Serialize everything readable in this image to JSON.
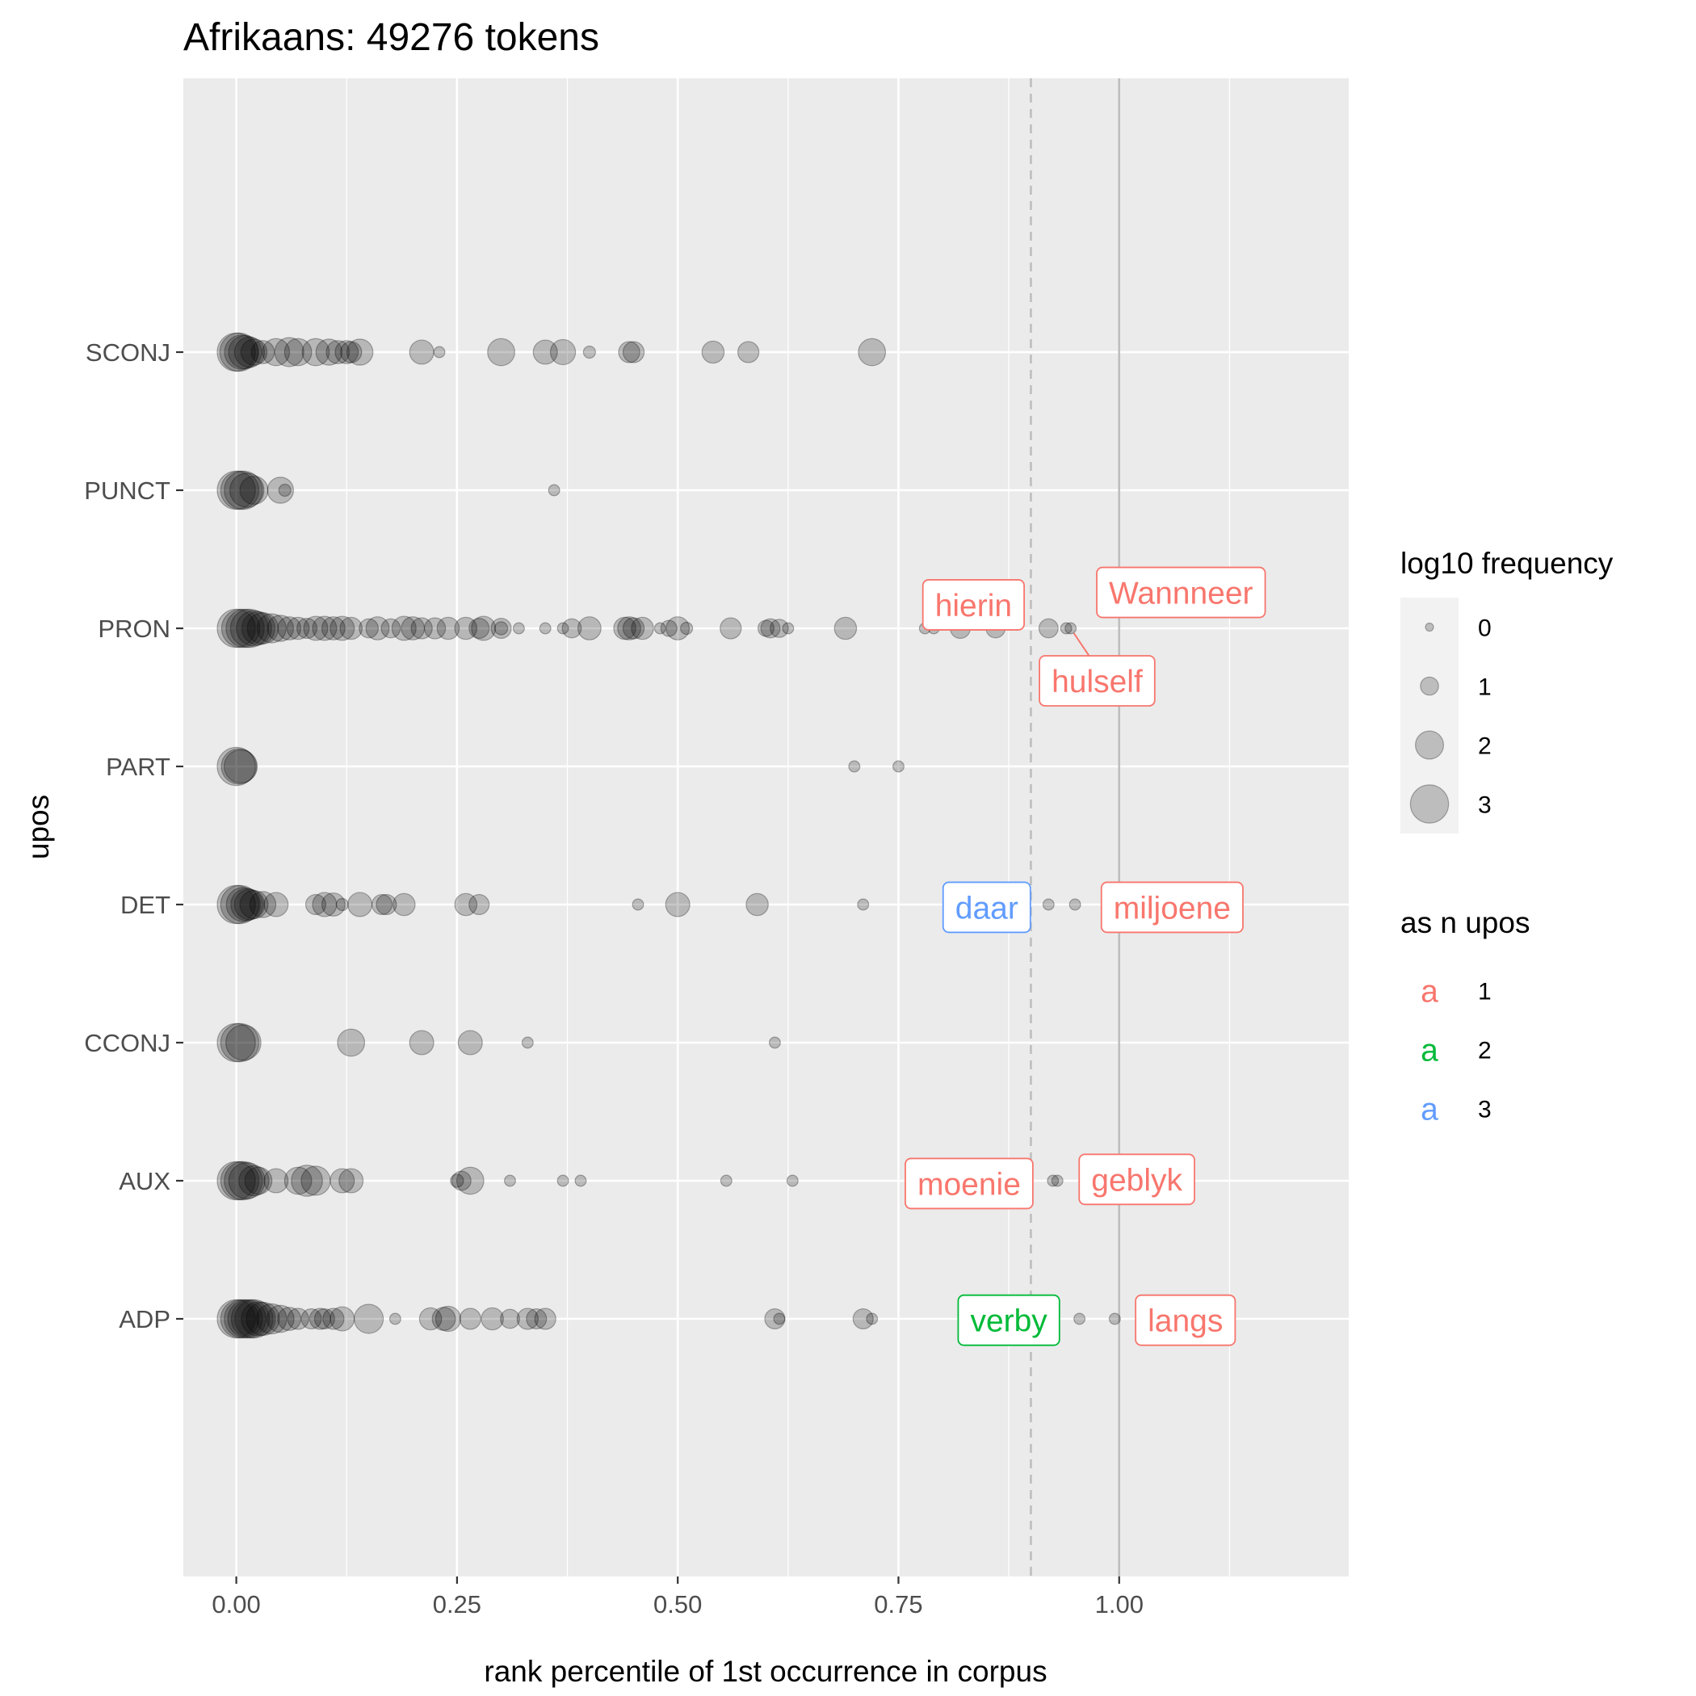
{
  "chart_data": {
    "type": "scatter",
    "title": "Afrikaans: 49276 tokens",
    "xlabel": "rank percentile of 1st occurrence in corpus",
    "ylabel": "upos",
    "xlim": [
      -0.06,
      1.26
    ],
    "x_ticks": [
      {
        "value": 0.0,
        "label": "0.00"
      },
      {
        "value": 0.25,
        "label": "0.25"
      },
      {
        "value": 0.5,
        "label": "0.50"
      },
      {
        "value": 0.75,
        "label": "0.75"
      },
      {
        "value": 1.0,
        "label": "1.00"
      }
    ],
    "categories": [
      "ADP",
      "AUX",
      "CCONJ",
      "DET",
      "PART",
      "PRON",
      "PUNCT",
      "SCONJ"
    ],
    "grid": true,
    "reference_lines": [
      {
        "x": 0.9,
        "style": "dashed",
        "color": "#bebebe"
      },
      {
        "x": 1.0,
        "style": "solid",
        "color": "#bebebe"
      }
    ],
    "point_color": "#000000",
    "point_alpha": 0.22,
    "size_legend": {
      "title": "log10 frequency",
      "levels": [
        {
          "value": 0,
          "label": "0"
        },
        {
          "value": 1,
          "label": "1"
        },
        {
          "value": 2,
          "label": "2"
        },
        {
          "value": 3,
          "label": "3"
        }
      ]
    },
    "color_legend": {
      "title": "as n upos",
      "glyph": "a",
      "items": [
        {
          "label": "1",
          "color": "#F8766D"
        },
        {
          "label": "2",
          "color": "#00BA38"
        },
        {
          "label": "3",
          "color": "#619CFF"
        }
      ]
    },
    "series": [
      {
        "category": "SCONJ",
        "points": [
          [
            0.0,
            3
          ],
          [
            0.003,
            3
          ],
          [
            0.006,
            2.6
          ],
          [
            0.01,
            2.5
          ],
          [
            0.015,
            2.2
          ],
          [
            0.02,
            1.8
          ],
          [
            0.03,
            1.5
          ],
          [
            0.045,
            1.9
          ],
          [
            0.06,
            2.1
          ],
          [
            0.07,
            1.9
          ],
          [
            0.09,
            1.9
          ],
          [
            0.105,
            1.8
          ],
          [
            0.115,
            1.5
          ],
          [
            0.125,
            1.5
          ],
          [
            0.13,
            1.3
          ],
          [
            0.14,
            1.8
          ],
          [
            0.21,
            1.6
          ],
          [
            0.23,
            0.3
          ],
          [
            0.3,
            1.9
          ],
          [
            0.35,
            1.6
          ],
          [
            0.37,
            1.7
          ],
          [
            0.4,
            0.4
          ],
          [
            0.445,
            1.3
          ],
          [
            0.45,
            1.3
          ],
          [
            0.54,
            1.4
          ],
          [
            0.58,
            1.3
          ],
          [
            0.72,
            1.9
          ]
        ]
      },
      {
        "category": "PUNCT",
        "points": [
          [
            0.0,
            3
          ],
          [
            0.004,
            3
          ],
          [
            0.008,
            3
          ],
          [
            0.012,
            2.6
          ],
          [
            0.02,
            2.0
          ],
          [
            0.05,
            1.8
          ],
          [
            0.055,
            0.4
          ],
          [
            0.36,
            0.3
          ]
        ]
      },
      {
        "category": "PRON",
        "points": [
          [
            0.0,
            3
          ],
          [
            0.005,
            3
          ],
          [
            0.01,
            3
          ],
          [
            0.015,
            3
          ],
          [
            0.02,
            2.7
          ],
          [
            0.025,
            2.5
          ],
          [
            0.03,
            2.3
          ],
          [
            0.04,
            2.1
          ],
          [
            0.05,
            1.8
          ],
          [
            0.06,
            1.5
          ],
          [
            0.07,
            1.4
          ],
          [
            0.08,
            1.2
          ],
          [
            0.09,
            1.6
          ],
          [
            0.1,
            1.6
          ],
          [
            0.11,
            1.5
          ],
          [
            0.12,
            1.6
          ],
          [
            0.13,
            1.4
          ],
          [
            0.15,
            1.1
          ],
          [
            0.16,
            1.5
          ],
          [
            0.175,
            1.1
          ],
          [
            0.19,
            1.6
          ],
          [
            0.2,
            1.5
          ],
          [
            0.21,
            1.3
          ],
          [
            0.225,
            1.3
          ],
          [
            0.24,
            1.4
          ],
          [
            0.26,
            1.4
          ],
          [
            0.275,
            1.2
          ],
          [
            0.28,
            1.6
          ],
          [
            0.3,
            1.2
          ],
          [
            0.3,
            0.5
          ],
          [
            0.32,
            0.3
          ],
          [
            0.35,
            0.3
          ],
          [
            0.37,
            0.3
          ],
          [
            0.38,
            1.1
          ],
          [
            0.4,
            1.5
          ],
          [
            0.44,
            1.4
          ],
          [
            0.445,
            1.5
          ],
          [
            0.45,
            1.3
          ],
          [
            0.46,
            1.4
          ],
          [
            0.48,
            0.3
          ],
          [
            0.49,
            0.8
          ],
          [
            0.5,
            1.5
          ],
          [
            0.51,
            0.4
          ],
          [
            0.56,
            1.3
          ],
          [
            0.6,
            0.8
          ],
          [
            0.605,
            1.1
          ],
          [
            0.615,
            1.0
          ],
          [
            0.625,
            0.3
          ],
          [
            0.69,
            1.4
          ],
          [
            0.78,
            0.3
          ],
          [
            0.79,
            0.3
          ],
          [
            0.82,
            1.2
          ],
          [
            0.86,
            1.1
          ],
          [
            0.92,
            1.1
          ],
          [
            0.94,
            0.3
          ],
          [
            0.945,
            0.3
          ]
        ]
      },
      {
        "category": "PART",
        "points": [
          [
            0.0,
            3
          ],
          [
            0.003,
            2.7
          ],
          [
            0.005,
            2.5
          ],
          [
            0.7,
            0.3
          ],
          [
            0.75,
            0.3
          ]
        ]
      },
      {
        "category": "DET",
        "points": [
          [
            0.0,
            3
          ],
          [
            0.004,
            3
          ],
          [
            0.008,
            2.6
          ],
          [
            0.012,
            2.4
          ],
          [
            0.015,
            2.2
          ],
          [
            0.02,
            2.0
          ],
          [
            0.03,
            1.8
          ],
          [
            0.045,
            1.6
          ],
          [
            0.09,
            1.2
          ],
          [
            0.1,
            1.6
          ],
          [
            0.11,
            1.5
          ],
          [
            0.12,
            0.4
          ],
          [
            0.14,
            1.6
          ],
          [
            0.165,
            1.2
          ],
          [
            0.17,
            1.2
          ],
          [
            0.19,
            1.4
          ],
          [
            0.26,
            1.4
          ],
          [
            0.275,
            1.2
          ],
          [
            0.455,
            0.3
          ],
          [
            0.5,
            1.6
          ],
          [
            0.59,
            1.4
          ],
          [
            0.71,
            0.3
          ],
          [
            0.92,
            0.3
          ],
          [
            0.95,
            0.3
          ]
        ]
      },
      {
        "category": "CCONJ",
        "points": [
          [
            0.0,
            3
          ],
          [
            0.004,
            3
          ],
          [
            0.008,
            2.7
          ],
          [
            0.13,
            1.9
          ],
          [
            0.21,
            1.6
          ],
          [
            0.265,
            1.6
          ],
          [
            0.33,
            0.3
          ],
          [
            0.61,
            0.3
          ]
        ]
      },
      {
        "category": "AUX",
        "points": [
          [
            0.0,
            3
          ],
          [
            0.004,
            3
          ],
          [
            0.008,
            3
          ],
          [
            0.012,
            2.8
          ],
          [
            0.02,
            2.2
          ],
          [
            0.025,
            1.9
          ],
          [
            0.045,
            1.6
          ],
          [
            0.07,
            1.9
          ],
          [
            0.08,
            2.3
          ],
          [
            0.09,
            2.1
          ],
          [
            0.12,
            1.6
          ],
          [
            0.13,
            1.6
          ],
          [
            0.25,
            0.5
          ],
          [
            0.255,
            1.1
          ],
          [
            0.265,
            1.9
          ],
          [
            0.31,
            0.3
          ],
          [
            0.37,
            0.3
          ],
          [
            0.39,
            0.3
          ],
          [
            0.555,
            0.3
          ],
          [
            0.63,
            0.3
          ],
          [
            0.925,
            0.3
          ],
          [
            0.93,
            0.3
          ]
        ]
      },
      {
        "category": "ADP",
        "points": [
          [
            0.0,
            3
          ],
          [
            0.004,
            3
          ],
          [
            0.008,
            3
          ],
          [
            0.012,
            3
          ],
          [
            0.016,
            3
          ],
          [
            0.02,
            3
          ],
          [
            0.025,
            2.6
          ],
          [
            0.03,
            2.5
          ],
          [
            0.04,
            2.2
          ],
          [
            0.05,
            1.9
          ],
          [
            0.06,
            1.5
          ],
          [
            0.07,
            1.3
          ],
          [
            0.085,
            1.2
          ],
          [
            0.095,
            1.3
          ],
          [
            0.1,
            1.2
          ],
          [
            0.11,
            1.3
          ],
          [
            0.12,
            1.6
          ],
          [
            0.15,
            2.1
          ],
          [
            0.18,
            0.3
          ],
          [
            0.22,
            1.4
          ],
          [
            0.235,
            1.5
          ],
          [
            0.24,
            1.7
          ],
          [
            0.265,
            1.3
          ],
          [
            0.29,
            1.4
          ],
          [
            0.31,
            1.1
          ],
          [
            0.33,
            1.3
          ],
          [
            0.34,
            1.2
          ],
          [
            0.35,
            1.3
          ],
          [
            0.61,
            1.2
          ],
          [
            0.615,
            0.3
          ],
          [
            0.71,
            1.2
          ],
          [
            0.72,
            0.3
          ],
          [
            0.955,
            0.3
          ],
          [
            0.995,
            0.3
          ]
        ]
      }
    ],
    "annotations": [
      {
        "category": "PRON",
        "x": 0.94,
        "text": "Wannneer",
        "color_group": "1",
        "label_x": 1.07,
        "label_y_off": 0.26,
        "leader": false
      },
      {
        "category": "PRON",
        "x": 0.82,
        "text": "hierin",
        "color_group": "1",
        "label_x": 0.835,
        "label_y_off": 0.17,
        "leader": false
      },
      {
        "category": "PRON",
        "x": 0.945,
        "text": "hulself",
        "color_group": "1",
        "label_x": 0.975,
        "label_y_off": -0.38,
        "leader": true
      },
      {
        "category": "DET",
        "x": 0.92,
        "text": "daar",
        "color_group": "3",
        "label_x": 0.85,
        "label_y_off": -0.02,
        "leader": false
      },
      {
        "category": "DET",
        "x": 0.95,
        "text": "miljoene",
        "color_group": "1",
        "label_x": 1.06,
        "label_y_off": -0.02,
        "leader": false
      },
      {
        "category": "AUX",
        "x": 0.925,
        "text": "moenie",
        "color_group": "1",
        "label_x": 0.83,
        "label_y_off": -0.02,
        "leader": false
      },
      {
        "category": "AUX",
        "x": 0.93,
        "text": "geblyk",
        "color_group": "1",
        "label_x": 1.02,
        "label_y_off": 0.01,
        "leader": false
      },
      {
        "category": "ADP",
        "x": 0.955,
        "text": "verby",
        "color_group": "2",
        "label_x": 0.875,
        "label_y_off": -0.01,
        "leader": false
      },
      {
        "category": "ADP",
        "x": 0.995,
        "text": "langs",
        "color_group": "1",
        "label_x": 1.075,
        "label_y_off": -0.01,
        "leader": false
      }
    ]
  }
}
